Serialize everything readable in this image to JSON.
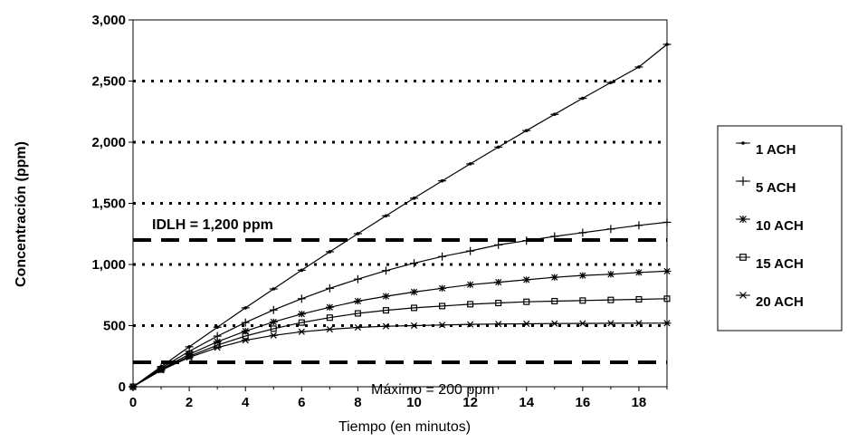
{
  "chart_data": {
    "type": "line",
    "xlabel": "Tiempo (en minutos)",
    "ylabel": "Concentración (ppm)",
    "xlim": [
      0,
      19
    ],
    "ylim": [
      0,
      3000
    ],
    "x_ticks": [
      "0",
      "2",
      "4",
      "6",
      "8",
      "10",
      "12",
      "14",
      "16",
      "18"
    ],
    "y_ticks": [
      "0",
      "500",
      "1,000",
      "1,500",
      "2,000",
      "2,500",
      "3,000"
    ],
    "grid": "dotted horizontal",
    "legend_position": "right",
    "x": [
      0,
      1,
      2,
      3,
      4,
      5,
      6,
      7,
      8,
      9,
      10,
      11,
      12,
      13,
      14,
      15,
      16,
      17,
      18,
      19
    ],
    "series": [
      {
        "name": "1 ACH",
        "marker": "dash",
        "values": [
          0,
          165,
          327,
          487,
          645,
          800,
          953,
          1104,
          1252,
          1398,
          1542,
          1684,
          1823,
          1960,
          2095,
          2228,
          2359,
          2488,
          2615,
          2800
        ]
      },
      {
        "name": "5 ACH",
        "marker": "plus",
        "values": [
          0,
          155,
          290,
          414,
          525,
          628,
          720,
          805,
          880,
          950,
          1010,
          1065,
          1110,
          1160,
          1195,
          1230,
          1260,
          1290,
          1320,
          1345
        ]
      },
      {
        "name": "10 ACH",
        "marker": "asterisk",
        "values": [
          0,
          145,
          265,
          368,
          455,
          530,
          595,
          650,
          700,
          740,
          775,
          805,
          835,
          855,
          875,
          895,
          910,
          920,
          935,
          945
        ]
      },
      {
        "name": "15 ACH",
        "marker": "square",
        "values": [
          0,
          140,
          250,
          340,
          415,
          475,
          525,
          565,
          600,
          625,
          645,
          660,
          675,
          685,
          695,
          700,
          705,
          710,
          715,
          720
        ]
      },
      {
        "name": "20 ACH",
        "marker": "x-star",
        "values": [
          0,
          135,
          240,
          320,
          380,
          420,
          450,
          470,
          485,
          495,
          500,
          505,
          510,
          513,
          515,
          517,
          518,
          519,
          520,
          520
        ]
      }
    ],
    "reference_lines": [
      {
        "label": "IDLH = 1,200 ppm",
        "value": 1200,
        "style": "dashed"
      },
      {
        "label": "Máximo = 200 ppm",
        "value": 200,
        "style": "dashed"
      }
    ]
  }
}
